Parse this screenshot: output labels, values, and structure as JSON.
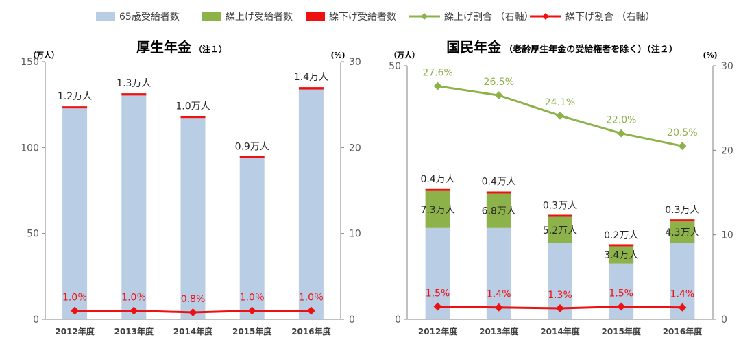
{
  "legend": {
    "placement": "top",
    "items": [
      {
        "key": "base",
        "label": "65歳受給者数",
        "color": "#b9cde5",
        "kind": "box"
      },
      {
        "key": "early",
        "label": "繰上げ受給者数",
        "color": "#8db24a",
        "kind": "box"
      },
      {
        "key": "deferred",
        "label": "繰下げ受給者数",
        "color": "#ee1111",
        "kind": "box"
      },
      {
        "key": "early_ratio",
        "label": "繰上げ割合 （右軸）",
        "color": "#8db24a",
        "kind": "line"
      },
      {
        "key": "deferred_ratio",
        "label": "繰下げ割合 （右軸）",
        "color": "#ee1111",
        "kind": "line"
      }
    ]
  },
  "colors": {
    "base": "#b9cde5",
    "early": "#8db24a",
    "deferred": "#ee1111",
    "axis": "#808080",
    "label": "#262626"
  },
  "chart_data": [
    {
      "type": "bar",
      "stacked": true,
      "title": "厚生年金",
      "title_note": "（注１）",
      "ylabel_left": "（万人）",
      "ylabel_right": "(%)",
      "categories": [
        "2012年度",
        "2013年度",
        "2014年度",
        "2015年度",
        "2016年度"
      ],
      "ylim": [
        0,
        150
      ],
      "yticks": [
        "0",
        "50",
        "100",
        "150"
      ],
      "y2lim": [
        0,
        30
      ],
      "y2ticks": [
        "0",
        "10",
        "20",
        "30"
      ],
      "grid": false,
      "series": [
        {
          "key": "base",
          "values": [
            122.8,
            130.3,
            117.2,
            93.8,
            133.8
          ]
        },
        {
          "key": "deferred",
          "values": [
            1.2,
            1.3,
            1.0,
            0.9,
            1.4
          ],
          "labels": [
            "1.2万人",
            "1.3万人",
            "1.0万人",
            "0.9万人",
            "1.4万人"
          ]
        }
      ],
      "line_series": [
        {
          "key": "deferred_ratio",
          "axis": "right",
          "values": [
            1.0,
            1.0,
            0.8,
            1.0,
            1.0
          ],
          "labels": [
            "1.0％",
            "1.0％",
            "0.8%",
            "1.0％",
            "1.0％"
          ]
        }
      ]
    },
    {
      "type": "bar",
      "stacked": true,
      "title": "国民年金",
      "title_note": "（老齢厚生年金の受給権者を除く）（注２）",
      "ylabel_left": "（万人）",
      "ylabel_right": "(%)",
      "categories": [
        "2012年度",
        "2013年度",
        "2014年度",
        "2015年度",
        "2016年度"
      ],
      "ylim": [
        0,
        50
      ],
      "yticks": [
        "0",
        "50"
      ],
      "y2lim": [
        0,
        30
      ],
      "y2ticks": [
        "0",
        "10",
        "20",
        "30"
      ],
      "grid": false,
      "series": [
        {
          "key": "base",
          "values": [
            18.0,
            18.0,
            15.0,
            11.0,
            15.0
          ]
        },
        {
          "key": "early",
          "values": [
            7.3,
            6.8,
            5.2,
            3.4,
            4.3
          ],
          "labels": [
            "7.3万人",
            "6.8万人",
            "5.2万人",
            "3.4万人",
            "4.3万人"
          ]
        },
        {
          "key": "deferred",
          "values": [
            0.4,
            0.4,
            0.3,
            0.2,
            0.3
          ],
          "labels": [
            "0.4万人",
            "0.4万人",
            "0.3万人",
            "0.2万人",
            "0.3万人"
          ]
        }
      ],
      "line_series": [
        {
          "key": "early_ratio",
          "axis": "right",
          "values": [
            27.6,
            26.5,
            24.1,
            22.0,
            20.5
          ],
          "labels": [
            "27.6%",
            "26.5%",
            "24.1%",
            "22.0%",
            "20.5%"
          ]
        },
        {
          "key": "deferred_ratio",
          "axis": "right",
          "values": [
            1.5,
            1.4,
            1.3,
            1.5,
            1.4
          ],
          "labels": [
            "1.5%",
            "1.4%",
            "1.3%",
            "1.5%",
            "1.4%"
          ]
        }
      ]
    }
  ]
}
